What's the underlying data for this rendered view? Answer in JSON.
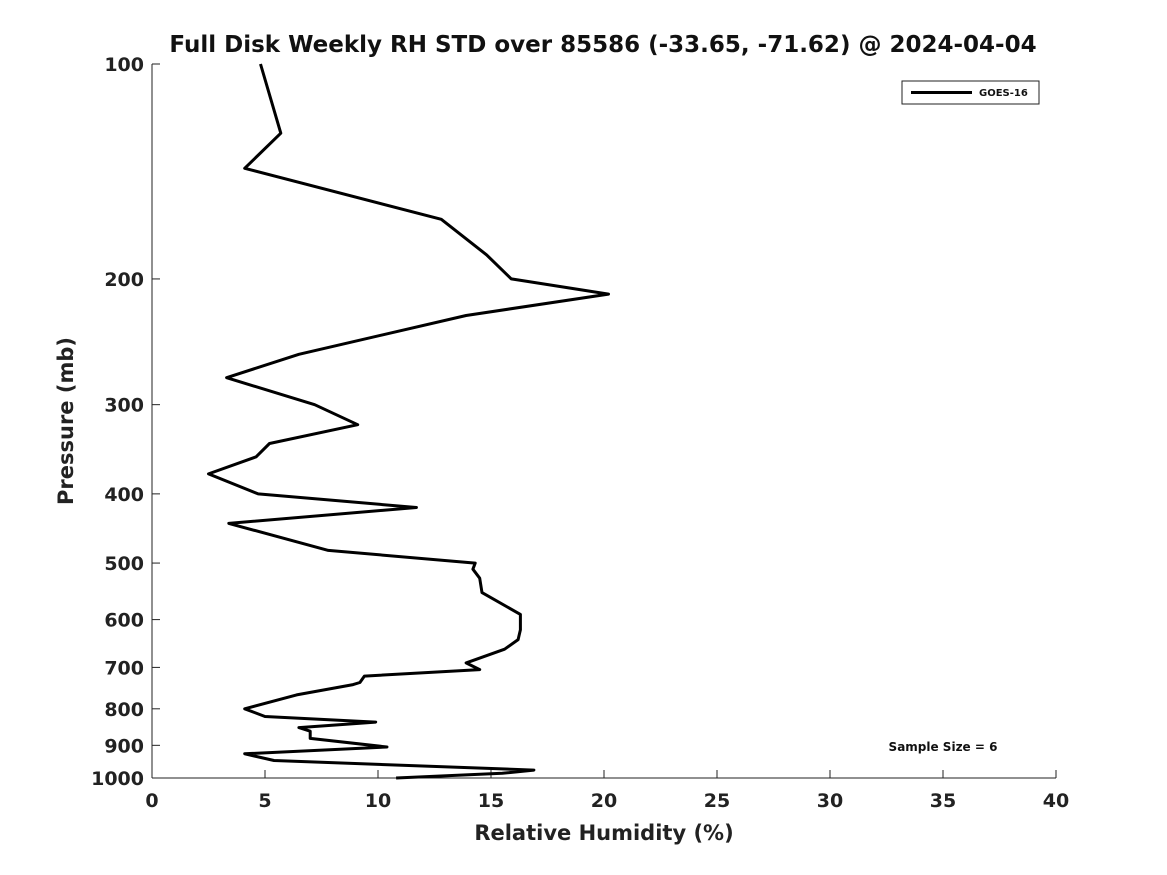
{
  "chart_data": {
    "type": "line",
    "title": "Full Disk Weekly RH STD over 85586 (-33.65, -71.62) @ 2024-04-04",
    "xlabel": "Relative Humidity (%)",
    "ylabel": "Pressure (mb)",
    "xlim": [
      0,
      40
    ],
    "ylim": [
      1000,
      100
    ],
    "yscale": "log",
    "x_ticks": [
      0,
      5,
      10,
      15,
      20,
      25,
      30,
      35,
      40
    ],
    "x_tick_labels": [
      "0",
      "5",
      "10",
      "15",
      "20",
      "25",
      "30",
      "35",
      "40"
    ],
    "y_ticks": [
      100,
      200,
      300,
      400,
      500,
      600,
      700,
      800,
      900,
      1000
    ],
    "y_tick_labels": [
      "100",
      "200",
      "300",
      "400",
      "500",
      "600",
      "700",
      "800",
      "900",
      "1000"
    ],
    "grid": false,
    "legend_position": "top-right",
    "series": [
      {
        "name": "GOES-16",
        "color": "#000000",
        "points": [
          [
            4.8,
            100
          ],
          [
            5.7,
            125
          ],
          [
            4.1,
            140
          ],
          [
            12.8,
            165
          ],
          [
            14.8,
            185
          ],
          [
            15.9,
            200
          ],
          [
            20.2,
            210
          ],
          [
            13.9,
            225
          ],
          [
            6.5,
            255
          ],
          [
            3.3,
            275
          ],
          [
            7.2,
            300
          ],
          [
            9.1,
            320
          ],
          [
            5.2,
            340
          ],
          [
            4.6,
            355
          ],
          [
            2.5,
            375
          ],
          [
            4.7,
            400
          ],
          [
            11.7,
            418
          ],
          [
            3.4,
            440
          ],
          [
            7.8,
            480
          ],
          [
            14.3,
            500
          ],
          [
            14.2,
            510
          ],
          [
            14.5,
            525
          ],
          [
            14.6,
            550
          ],
          [
            16.3,
            590
          ],
          [
            16.3,
            620
          ],
          [
            16.2,
            640
          ],
          [
            15.6,
            660
          ],
          [
            13.9,
            690
          ],
          [
            14.5,
            705
          ],
          [
            9.4,
            720
          ],
          [
            9.2,
            735
          ],
          [
            8.9,
            740
          ],
          [
            6.4,
            765
          ],
          [
            4.1,
            800
          ],
          [
            5.0,
            820
          ],
          [
            9.9,
            835
          ],
          [
            6.5,
            850
          ],
          [
            7.0,
            860
          ],
          [
            7.0,
            880
          ],
          [
            10.4,
            905
          ],
          [
            4.1,
            925
          ],
          [
            5.4,
            945
          ],
          [
            16.9,
            975
          ],
          [
            15.5,
            985
          ],
          [
            10.8,
            1000
          ]
        ]
      }
    ],
    "annotation": "Sample Size = 6"
  }
}
